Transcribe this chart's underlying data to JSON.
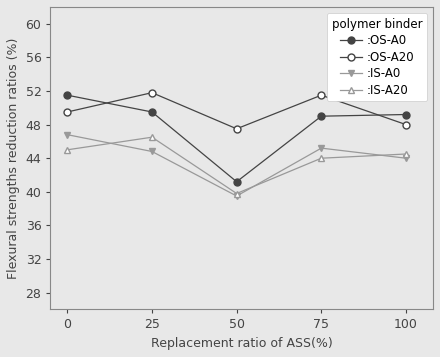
{
  "x": [
    0,
    25,
    50,
    75,
    100
  ],
  "series": [
    {
      "label": ":OS-A0",
      "values": [
        51.5,
        49.5,
        41.2,
        49.0,
        49.2
      ],
      "marker": "o",
      "line_color": "#444444",
      "markersize": 5,
      "filled": true
    },
    {
      "label": ":OS-A20",
      "values": [
        49.5,
        51.8,
        47.5,
        51.5,
        48.0
      ],
      "marker": "o",
      "line_color": "#444444",
      "markersize": 5,
      "filled": false
    },
    {
      "label": ":IS-A0",
      "values": [
        46.8,
        44.8,
        39.5,
        45.2,
        44.0
      ],
      "marker": "v",
      "line_color": "#999999",
      "markersize": 5,
      "filled": true
    },
    {
      "label": ":IS-A20",
      "values": [
        45.0,
        46.5,
        39.8,
        44.0,
        44.5
      ],
      "marker": "^",
      "line_color": "#999999",
      "markersize": 5,
      "filled": false
    }
  ],
  "xlabel": "Replacement ratio of ASS(%)",
  "ylabel": "Flexural strengths reduction ratios (%)",
  "legend_title": "polymer binder",
  "ylim": [
    26,
    62
  ],
  "yticks": [
    28,
    32,
    36,
    40,
    44,
    48,
    52,
    56,
    60
  ],
  "xticks": [
    0,
    25,
    50,
    75,
    100
  ],
  "background_color": "#e8e8e8",
  "plot_bg_color": "#e8e8e8",
  "axis_fontsize": 9,
  "tick_fontsize": 9,
  "legend_fontsize": 8.5
}
